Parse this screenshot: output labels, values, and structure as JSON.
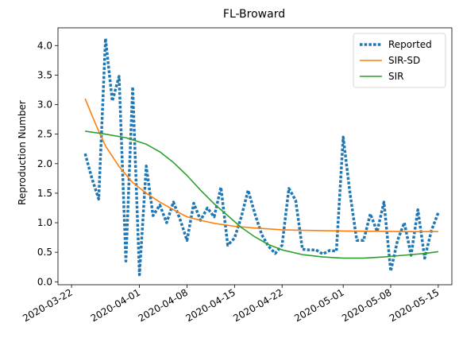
{
  "chart_data": {
    "type": "line",
    "title": "FL-Broward",
    "xlabel": "",
    "ylabel": "Reproduction Number",
    "xlim": [
      "2020-03-20",
      "2020-05-17"
    ],
    "ylim": [
      -0.05,
      4.3
    ],
    "x_ticks": [
      "2020-03-22",
      "2020-04-01",
      "2020-04-08",
      "2020-04-15",
      "2020-04-22",
      "2020-05-01",
      "2020-05-08",
      "2020-05-15"
    ],
    "y_ticks": [
      0.0,
      0.5,
      1.0,
      1.5,
      2.0,
      2.5,
      3.0,
      3.5,
      4.0
    ],
    "grid": false,
    "legend_position": "top-right",
    "series": [
      {
        "name": "Reported",
        "style": "dotted",
        "color": "#1f77b4",
        "points": [
          [
            "2020-03-24",
            2.17
          ],
          [
            "2020-03-25",
            1.75
          ],
          [
            "2020-03-26",
            1.4
          ],
          [
            "2020-03-27",
            4.12
          ],
          [
            "2020-03-28",
            3.06
          ],
          [
            "2020-03-29",
            3.48
          ],
          [
            "2020-03-30",
            0.35
          ],
          [
            "2020-03-31",
            3.3
          ],
          [
            "2020-04-01",
            0.12
          ],
          [
            "2020-04-02",
            1.96
          ],
          [
            "2020-04-03",
            1.12
          ],
          [
            "2020-04-04",
            1.3
          ],
          [
            "2020-04-05",
            1.0
          ],
          [
            "2020-04-06",
            1.35
          ],
          [
            "2020-04-07",
            1.05
          ],
          [
            "2020-04-08",
            0.7
          ],
          [
            "2020-04-09",
            1.33
          ],
          [
            "2020-04-10",
            1.04
          ],
          [
            "2020-04-11",
            1.25
          ],
          [
            "2020-04-12",
            1.1
          ],
          [
            "2020-04-13",
            1.6
          ],
          [
            "2020-04-14",
            0.62
          ],
          [
            "2020-04-15",
            0.74
          ],
          [
            "2020-04-16",
            1.1
          ],
          [
            "2020-04-17",
            1.55
          ],
          [
            "2020-04-18",
            1.15
          ],
          [
            "2020-04-19",
            0.8
          ],
          [
            "2020-04-20",
            0.6
          ],
          [
            "2020-04-21",
            0.48
          ],
          [
            "2020-04-22",
            0.62
          ],
          [
            "2020-04-23",
            1.58
          ],
          [
            "2020-04-24",
            1.38
          ],
          [
            "2020-04-25",
            0.55
          ],
          [
            "2020-04-26",
            0.54
          ],
          [
            "2020-04-27",
            0.54
          ],
          [
            "2020-04-28",
            0.47
          ],
          [
            "2020-04-29",
            0.53
          ],
          [
            "2020-04-30",
            0.52
          ],
          [
            "2020-05-01",
            2.45
          ],
          [
            "2020-05-02",
            1.5
          ],
          [
            "2020-05-03",
            0.7
          ],
          [
            "2020-05-04",
            0.7
          ],
          [
            "2020-05-05",
            1.15
          ],
          [
            "2020-05-06",
            0.85
          ],
          [
            "2020-05-07",
            1.35
          ],
          [
            "2020-05-08",
            0.18
          ],
          [
            "2020-05-09",
            0.7
          ],
          [
            "2020-05-10",
            1.0
          ],
          [
            "2020-05-11",
            0.45
          ],
          [
            "2020-05-12",
            1.22
          ],
          [
            "2020-05-13",
            0.4
          ],
          [
            "2020-05-14",
            0.87
          ],
          [
            "2020-05-15",
            1.17
          ]
        ]
      },
      {
        "name": "SIR-SD",
        "style": "solid",
        "color": "#ff7f0e",
        "points": [
          [
            "2020-03-24",
            3.1
          ],
          [
            "2020-03-25",
            2.82
          ],
          [
            "2020-03-26",
            2.55
          ],
          [
            "2020-03-27",
            2.3
          ],
          [
            "2020-03-29",
            1.95
          ],
          [
            "2020-03-31",
            1.68
          ],
          [
            "2020-04-02",
            1.5
          ],
          [
            "2020-04-04",
            1.35
          ],
          [
            "2020-04-06",
            1.22
          ],
          [
            "2020-04-08",
            1.1
          ],
          [
            "2020-04-10",
            1.04
          ],
          [
            "2020-04-12",
            0.99
          ],
          [
            "2020-04-15",
            0.94
          ],
          [
            "2020-04-18",
            0.91
          ],
          [
            "2020-04-22",
            0.88
          ],
          [
            "2020-04-26",
            0.87
          ],
          [
            "2020-05-01",
            0.86
          ],
          [
            "2020-05-06",
            0.855
          ],
          [
            "2020-05-10",
            0.85
          ],
          [
            "2020-05-15",
            0.85
          ]
        ]
      },
      {
        "name": "SIR",
        "style": "solid",
        "color": "#2ca02c",
        "points": [
          [
            "2020-03-24",
            2.55
          ],
          [
            "2020-03-27",
            2.5
          ],
          [
            "2020-03-30",
            2.44
          ],
          [
            "2020-04-02",
            2.33
          ],
          [
            "2020-04-04",
            2.2
          ],
          [
            "2020-04-06",
            2.02
          ],
          [
            "2020-04-08",
            1.8
          ],
          [
            "2020-04-10",
            1.55
          ],
          [
            "2020-04-12",
            1.32
          ],
          [
            "2020-04-14",
            1.12
          ],
          [
            "2020-04-16",
            0.92
          ],
          [
            "2020-04-18",
            0.76
          ],
          [
            "2020-04-20",
            0.63
          ],
          [
            "2020-04-22",
            0.54
          ],
          [
            "2020-04-25",
            0.46
          ],
          [
            "2020-04-28",
            0.42
          ],
          [
            "2020-05-01",
            0.4
          ],
          [
            "2020-05-04",
            0.4
          ],
          [
            "2020-05-07",
            0.42
          ],
          [
            "2020-05-10",
            0.45
          ],
          [
            "2020-05-13",
            0.48
          ],
          [
            "2020-05-15",
            0.51
          ]
        ]
      }
    ]
  }
}
